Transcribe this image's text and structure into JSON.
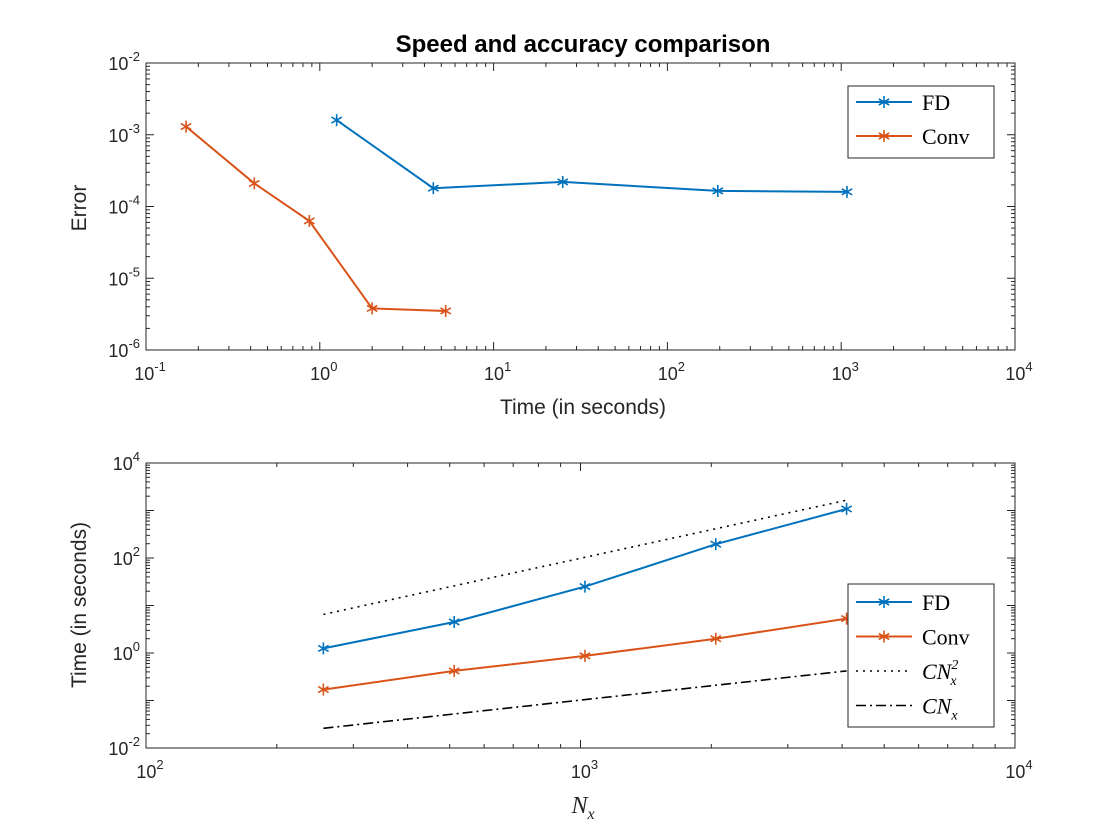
{
  "chart_data": [
    {
      "type": "line",
      "title": "Speed and accuracy comparison",
      "xlabel": "Time (in seconds)",
      "ylabel": "Error",
      "xscale": "log",
      "yscale": "log",
      "xlim": [
        0.1,
        10000
      ],
      "ylim": [
        1e-06,
        0.01
      ],
      "x_ticks": [
        {
          "base": "10",
          "exp": "-1"
        },
        {
          "base": "10",
          "exp": "0"
        },
        {
          "base": "10",
          "exp": "1"
        },
        {
          "base": "10",
          "exp": "2"
        },
        {
          "base": "10",
          "exp": "3"
        },
        {
          "base": "10",
          "exp": "4"
        }
      ],
      "y_ticks": [
        {
          "base": "10",
          "exp": "-6"
        },
        {
          "base": "10",
          "exp": "-5"
        },
        {
          "base": "10",
          "exp": "-4"
        },
        {
          "base": "10",
          "exp": "-3"
        },
        {
          "base": "10",
          "exp": "-2"
        }
      ],
      "grid": false,
      "legend_position": "top-right",
      "series": [
        {
          "name": "FD",
          "color": "#0072BD",
          "marker": "asterisk",
          "line": "solid",
          "x": [
            1.25,
            4.5,
            25,
            195,
            1080
          ],
          "y": [
            0.0016,
            0.00018,
            0.00022,
            0.000165,
            0.00016
          ]
        },
        {
          "name": "Conv",
          "color": "#D95319",
          "marker": "asterisk",
          "line": "solid",
          "x": [
            0.17,
            0.42,
            0.87,
            2.0,
            5.3
          ],
          "y": [
            0.0013,
            0.00021,
            6.3e-05,
            3.8e-06,
            3.5e-06
          ]
        }
      ]
    },
    {
      "type": "line",
      "title": "",
      "xlabel": "N_x",
      "ylabel": "Time (in seconds)",
      "xscale": "log",
      "yscale": "log",
      "xlim": [
        100,
        10000
      ],
      "ylim": [
        0.01,
        10000
      ],
      "x_ticks": [
        {
          "base": "10",
          "exp": "2"
        },
        {
          "base": "10",
          "exp": "3"
        },
        {
          "base": "10",
          "exp": "4"
        }
      ],
      "y_ticks": [
        {
          "base": "10",
          "exp": "-2"
        },
        {
          "base": "10",
          "exp": "0"
        },
        {
          "base": "10",
          "exp": "2"
        },
        {
          "base": "10",
          "exp": "4"
        }
      ],
      "grid": false,
      "legend_position": "bottom-right",
      "series": [
        {
          "name": "FD",
          "color": "#0072BD",
          "marker": "asterisk",
          "line": "solid",
          "x": [
            256,
            512,
            1024,
            2048,
            4096
          ],
          "y": [
            1.25,
            4.5,
            25,
            195,
            1080
          ]
        },
        {
          "name": "Conv",
          "color": "#D95319",
          "marker": "asterisk",
          "line": "solid",
          "x": [
            256,
            512,
            1024,
            2048,
            4096
          ],
          "y": [
            0.17,
            0.42,
            0.87,
            2.0,
            5.3
          ]
        },
        {
          "name": "CN_x^2",
          "color": "#000000",
          "marker": "none",
          "line": "dotted",
          "x": [
            256,
            4096
          ],
          "y": [
            6.5,
            1650
          ]
        },
        {
          "name": "CN_x",
          "color": "#000000",
          "marker": "none",
          "line": "dashdot",
          "x": [
            256,
            4096
          ],
          "y": [
            0.026,
            0.42
          ]
        }
      ]
    }
  ]
}
